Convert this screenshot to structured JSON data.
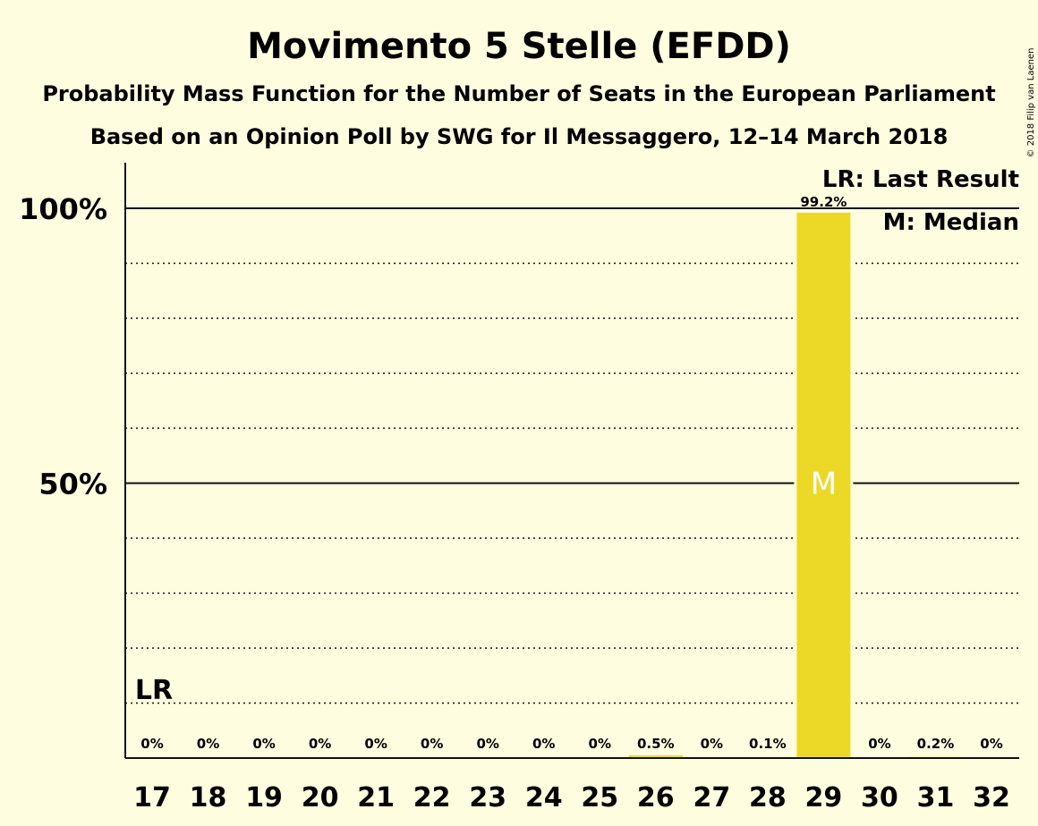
{
  "chart_data": {
    "type": "bar",
    "title": "Movimento 5 Stelle (EFDD)",
    "subtitle": "Probability Mass Function for the Number of Seats in the European Parliament",
    "subtitle2": "Based on an Opinion Poll by SWG for Il Messaggero, 12–14 March 2018",
    "categories": [
      "17",
      "18",
      "19",
      "20",
      "21",
      "22",
      "23",
      "24",
      "25",
      "26",
      "27",
      "28",
      "29",
      "30",
      "31",
      "32"
    ],
    "values": [
      0,
      0,
      0,
      0,
      0,
      0,
      0,
      0,
      0,
      0.5,
      0,
      0.1,
      99.2,
      0,
      0.2,
      0
    ],
    "value_labels": [
      "0%",
      "0%",
      "0%",
      "0%",
      "0%",
      "0%",
      "0%",
      "0%",
      "0%",
      "0.5%",
      "0%",
      "0.1%",
      "99.2%",
      "0%",
      "0.2%",
      "0%"
    ],
    "ylim": [
      0,
      100
    ],
    "yticks": [
      {
        "value": 50,
        "label": "50%"
      },
      {
        "value": 100,
        "label": "100%"
      }
    ],
    "minor_gridlines": [
      10,
      20,
      30,
      40,
      60,
      70,
      80,
      90
    ],
    "bar_color": "#ecd927",
    "last_result": {
      "category": "17",
      "label": "LR"
    },
    "median": {
      "category": "29",
      "label": "M"
    },
    "legend": {
      "placement": "top-right",
      "items": [
        "LR: Last Result",
        "M: Median"
      ]
    },
    "grid": true
  },
  "copyright": "© 2018 Filip van Laenen"
}
